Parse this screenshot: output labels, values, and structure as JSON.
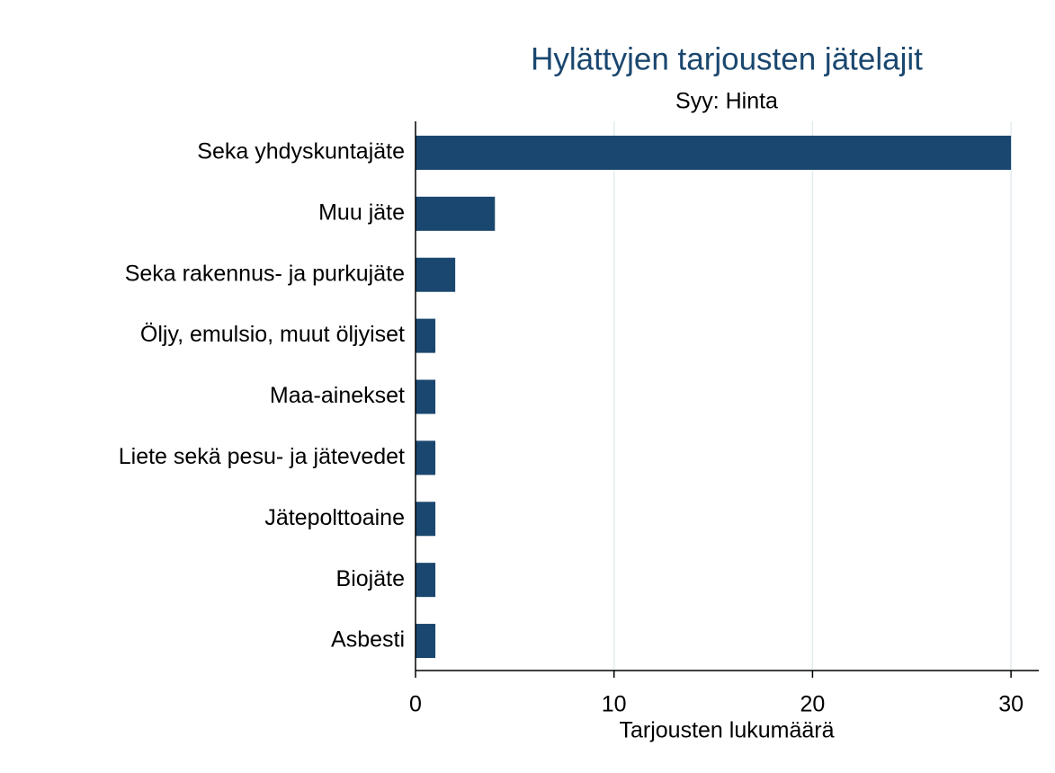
{
  "chart_data": {
    "type": "barh",
    "title": "Hylättyjen tarjousten jätelajit",
    "subtitle": "Syy: Hinta",
    "xlabel": "Tarjousten lukumäärä",
    "categories": [
      "Seka yhdyskuntajäte",
      "Muu jäte",
      "Seka rakennus- ja purkujäte",
      "Öljy, emulsio, muut öljyiset",
      "Maa-ainekset",
      "Liete sekä pesu- ja jätevedet",
      "Jätepolttoaine",
      "Biojäte",
      "Asbesti"
    ],
    "values": [
      30,
      4,
      2,
      1,
      1,
      1,
      1,
      1,
      1
    ],
    "color": "#1a476f",
    "xlim": [
      0,
      31.4
    ],
    "xticks": [
      0,
      10,
      20,
      30
    ],
    "grid": true
  }
}
